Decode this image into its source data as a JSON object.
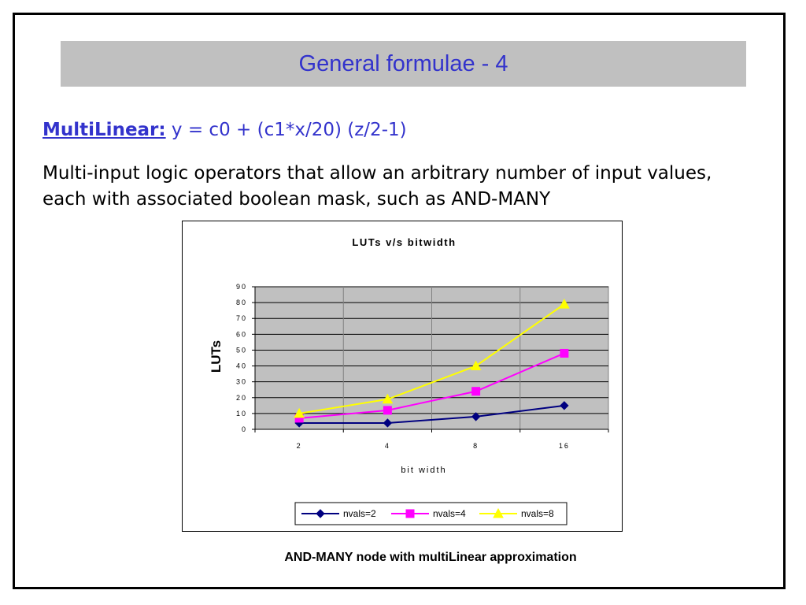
{
  "slide": {
    "title": "General formulae - 4",
    "formula_label": "MultiLinear:",
    "formula": " y = c0 + (c1*x/20) (z/2-1)",
    "description": "Multi-input logic operators that allow an arbitrary number of input values, each with associated boolean mask, such as AND-MANY",
    "caption": "AND-MANY node with multiLinear approximation"
  },
  "colors": {
    "title": "#3333cc",
    "title_bar": "#c0c0c0",
    "plot_bg": "#c0c0c0"
  },
  "chart_data": {
    "type": "line",
    "title": "LUTs v/s bitwidth",
    "xlabel": "bit width",
    "ylabel": "LUTs",
    "categories": [
      "2",
      "4",
      "8",
      "16"
    ],
    "ylim": [
      0,
      90
    ],
    "yticks": [
      "0",
      "10",
      "20",
      "30",
      "40",
      "50",
      "60",
      "70",
      "80",
      "90"
    ],
    "grid": true,
    "legend_position": "bottom",
    "series": [
      {
        "name": "nvals=2",
        "values": [
          4,
          4,
          8,
          15
        ],
        "color": "#000080",
        "marker": "diamond"
      },
      {
        "name": "nvals=4",
        "values": [
          7,
          12,
          24,
          48
        ],
        "color": "#ff00ff",
        "marker": "square"
      },
      {
        "name": "nvals=8",
        "values": [
          10,
          19,
          40,
          79
        ],
        "color": "#ffff00",
        "marker": "triangle"
      }
    ]
  }
}
